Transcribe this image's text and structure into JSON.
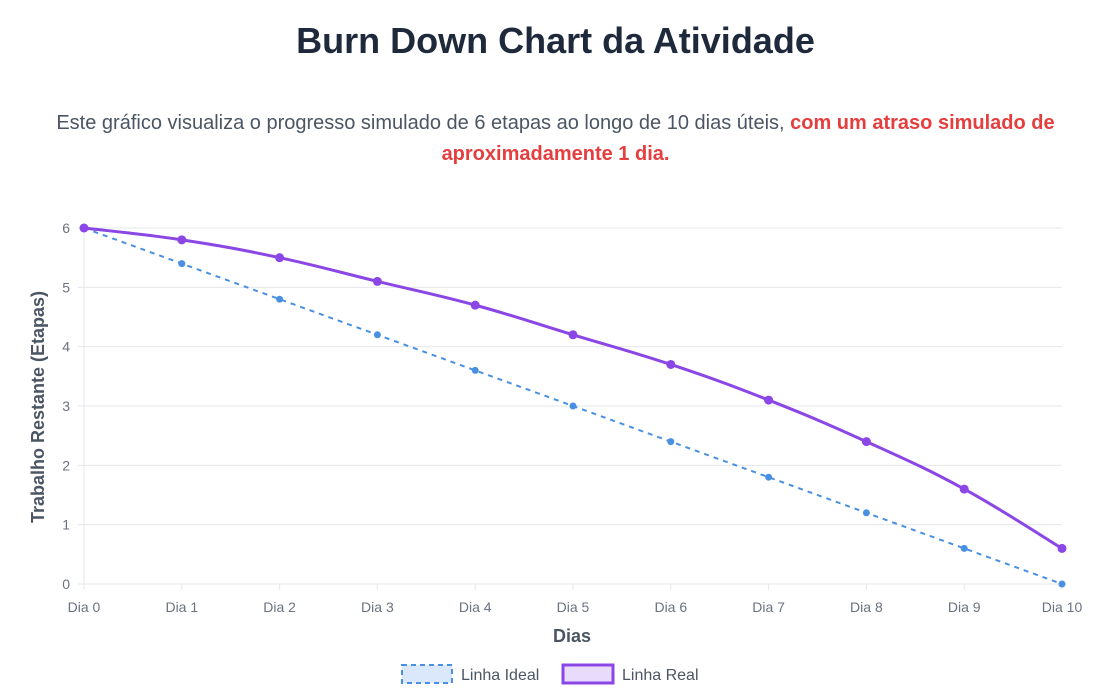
{
  "header": {
    "title": "Burn Down Chart da Atividade",
    "description_plain": "Este gráfico visualiza o progresso simulado de 6 etapas ao longo de 10 dias úteis, ",
    "description_emphasis": "com um atraso simulado de aproximadamente 1 dia."
  },
  "colors": {
    "ideal": "#4a90e2",
    "ideal_fill": "#dbe8fb",
    "real": "#8b46e6",
    "real_fill": "#e9dbfb",
    "grid": "#e5e7eb"
  },
  "chart_data": {
    "type": "line",
    "title": "",
    "xlabel": "Dias",
    "ylabel": "Trabalho Restante (Etapas)",
    "categories": [
      "Dia 0",
      "Dia 1",
      "Dia 2",
      "Dia 3",
      "Dia 4",
      "Dia 5",
      "Dia 6",
      "Dia 7",
      "Dia 8",
      "Dia 9",
      "Dia 10"
    ],
    "ylim": [
      0,
      6
    ],
    "yticks": [
      0,
      1,
      2,
      3,
      4,
      5,
      6
    ],
    "grid": true,
    "legend_position": "bottom",
    "series": [
      {
        "name": "Linha Ideal",
        "style": "dashed",
        "values": [
          6,
          5.4,
          4.8,
          4.2,
          3.6,
          3.0,
          2.4,
          1.8,
          1.2,
          0.6,
          0
        ]
      },
      {
        "name": "Linha Real",
        "style": "solid",
        "values": [
          6,
          5.8,
          5.5,
          5.1,
          4.7,
          4.2,
          3.7,
          3.1,
          2.4,
          1.6,
          0.6
        ]
      }
    ]
  }
}
